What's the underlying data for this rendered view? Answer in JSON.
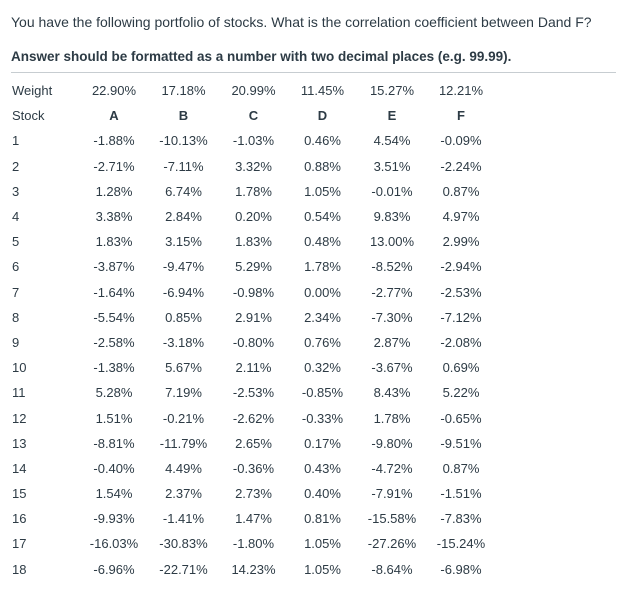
{
  "question": "You have the following portfolio of stocks. What is the correlation coefficient between Dand F?",
  "instruction": "Answer should be formatted as a number with two decimal places (e.g. 99.99).",
  "table": {
    "weight_label": "Weight",
    "weights": [
      "22.90%",
      "17.18%",
      "20.99%",
      "11.45%",
      "15.27%",
      "12.21%"
    ],
    "stock_label": "Stock",
    "stocks": [
      "A",
      "B",
      "C",
      "D",
      "E",
      "F"
    ],
    "rows": [
      {
        "n": "1",
        "v": [
          "-1.88%",
          "-10.13%",
          "-1.03%",
          "0.46%",
          "4.54%",
          "-0.09%"
        ]
      },
      {
        "n": "2",
        "v": [
          "-2.71%",
          "-7.11%",
          "3.32%",
          "0.88%",
          "3.51%",
          "-2.24%"
        ]
      },
      {
        "n": "3",
        "v": [
          "1.28%",
          "6.74%",
          "1.78%",
          "1.05%",
          "-0.01%",
          "0.87%"
        ]
      },
      {
        "n": "4",
        "v": [
          "3.38%",
          "2.84%",
          "0.20%",
          "0.54%",
          "9.83%",
          "4.97%"
        ]
      },
      {
        "n": "5",
        "v": [
          "1.83%",
          "3.15%",
          "1.83%",
          "0.48%",
          "13.00%",
          "2.99%"
        ]
      },
      {
        "n": "6",
        "v": [
          "-3.87%",
          "-9.47%",
          "5.29%",
          "1.78%",
          "-8.52%",
          "-2.94%"
        ]
      },
      {
        "n": "7",
        "v": [
          "-1.64%",
          "-6.94%",
          "-0.98%",
          "0.00%",
          "-2.77%",
          "-2.53%"
        ]
      },
      {
        "n": "8",
        "v": [
          "-5.54%",
          "0.85%",
          "2.91%",
          "2.34%",
          "-7.30%",
          "-7.12%"
        ]
      },
      {
        "n": "9",
        "v": [
          "-2.58%",
          "-3.18%",
          "-0.80%",
          "0.76%",
          "2.87%",
          "-2.08%"
        ]
      },
      {
        "n": "10",
        "v": [
          "-1.38%",
          "5.67%",
          "2.11%",
          "0.32%",
          "-3.67%",
          "0.69%"
        ]
      },
      {
        "n": "11",
        "v": [
          "5.28%",
          "7.19%",
          "-2.53%",
          "-0.85%",
          "8.43%",
          "5.22%"
        ]
      },
      {
        "n": "12",
        "v": [
          "1.51%",
          "-0.21%",
          "-2.62%",
          "-0.33%",
          "1.78%",
          "-0.65%"
        ]
      },
      {
        "n": "13",
        "v": [
          "-8.81%",
          "-11.79%",
          "2.65%",
          "0.17%",
          "-9.80%",
          "-9.51%"
        ]
      },
      {
        "n": "14",
        "v": [
          "-0.40%",
          "4.49%",
          "-0.36%",
          "0.43%",
          "-4.72%",
          "0.87%"
        ]
      },
      {
        "n": "15",
        "v": [
          "1.54%",
          "2.37%",
          "2.73%",
          "0.40%",
          "-7.91%",
          "-1.51%"
        ]
      },
      {
        "n": "16",
        "v": [
          "-9.93%",
          "-1.41%",
          "1.47%",
          "0.81%",
          "-15.58%",
          "-7.83%"
        ]
      },
      {
        "n": "17",
        "v": [
          "-16.03%",
          "-30.83%",
          "-1.80%",
          "1.05%",
          "-27.26%",
          "-15.24%"
        ]
      },
      {
        "n": "18",
        "v": [
          "-6.96%",
          "-22.71%",
          "14.23%",
          "1.05%",
          "-8.64%",
          "-6.98%"
        ]
      }
    ]
  }
}
